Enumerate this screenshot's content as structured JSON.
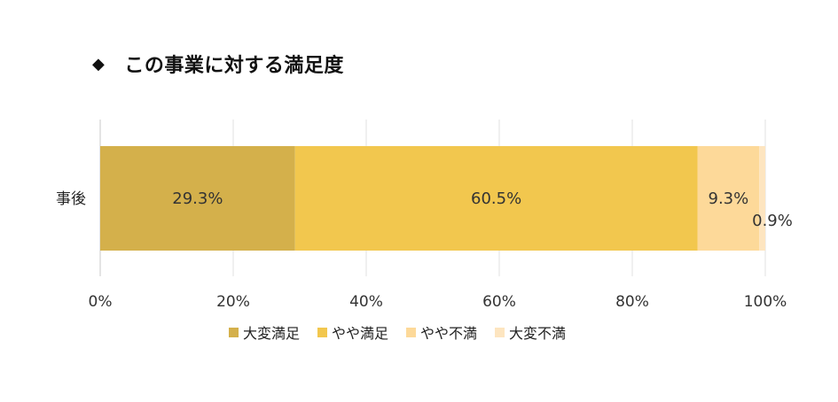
{
  "title": {
    "marker": "◆",
    "text": "この事業に対する満足度"
  },
  "chart_data": {
    "type": "bar",
    "orientation": "horizontal",
    "stacked": true,
    "categories": [
      "事後"
    ],
    "series": [
      {
        "name": "大変満足",
        "values": [
          29.3
        ],
        "label": "29.3%",
        "color": "#D4B04B"
      },
      {
        "name": "やや満足",
        "values": [
          60.5
        ],
        "label": "60.5%",
        "color": "#F2C74E"
      },
      {
        "name": "やや不満",
        "values": [
          9.3
        ],
        "label": "9.3%",
        "color": "#FDD999"
      },
      {
        "name": "大変不満",
        "values": [
          0.9
        ],
        "label": "0.9%",
        "color": "#FDE5C0"
      }
    ],
    "xlim": [
      0,
      100
    ],
    "xticks": [
      "0%",
      "20%",
      "40%",
      "60%",
      "80%",
      "100%"
    ],
    "grid": true,
    "legend_position": "bottom"
  }
}
